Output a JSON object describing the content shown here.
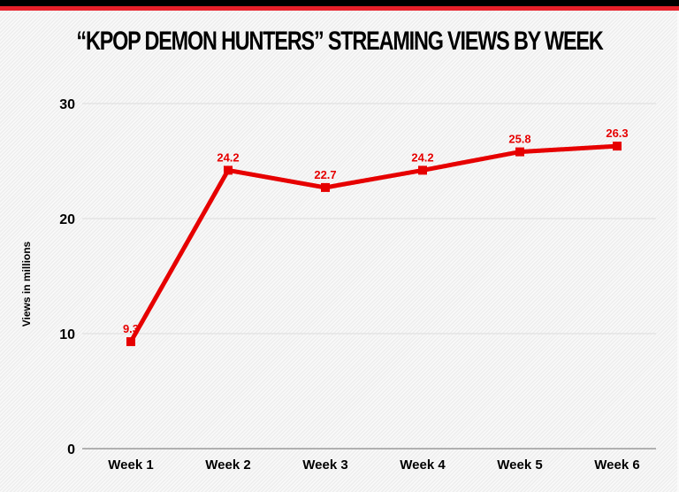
{
  "header": {
    "title": "“KPOP DEMON HUNTERS” STREAMING VIEWS BY WEEK",
    "bar_colors": {
      "top": "#000000",
      "accent": "#e8202a"
    }
  },
  "chart_data": {
    "type": "line",
    "title": "“KPOP DEMON HUNTERS” STREAMING VIEWS BY WEEK",
    "xlabel": "",
    "ylabel": "Views in millions",
    "categories": [
      "Week 1",
      "Week 2",
      "Week 3",
      "Week 4",
      "Week 5",
      "Week 6"
    ],
    "values": [
      9.3,
      24.2,
      22.7,
      24.2,
      25.8,
      26.3
    ],
    "data_labels": [
      "9.3",
      "24.2",
      "22.7",
      "24.2",
      "25.8",
      "26.3"
    ],
    "ylim": [
      0,
      30
    ],
    "yticks": [
      "0",
      "10",
      "20",
      "30"
    ],
    "ytick_values": [
      0,
      10,
      20,
      30
    ],
    "grid": true,
    "legend": "none",
    "line_color": "#e60000",
    "marker": "square"
  }
}
